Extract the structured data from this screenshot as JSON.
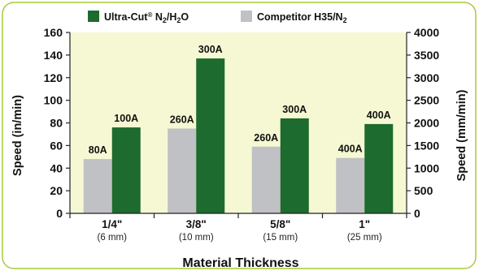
{
  "chart_data": {
    "type": "bar",
    "categories": [
      "1/4\"",
      "3/8\"",
      "5/8\"",
      "1\""
    ],
    "category_sublabels": [
      "(6 mm)",
      "(10 mm)",
      "(15 mm)",
      "(25 mm)"
    ],
    "series": [
      {
        "name_main": "Competitor H35/N",
        "name_sub": "2",
        "values": [
          48,
          75,
          59,
          49
        ],
        "data_labels": [
          "80A",
          "260A",
          "260A",
          "400A"
        ],
        "color": "#c0c1c4"
      },
      {
        "name_main": "Ultra-Cut",
        "name_reg": "®",
        "name_rest": " N",
        "name_sub1": "2",
        "name_slash": "/H",
        "name_sub2": "2",
        "name_end": "O",
        "values": [
          76,
          137,
          84,
          79
        ],
        "data_labels": [
          "100A",
          "300A",
          "300A",
          "400A"
        ],
        "color": "#1d6b2e"
      }
    ],
    "xlabel": "Material Thickness",
    "ylabel": "Speed (in/min)",
    "y2label": "Speed (mm/min)",
    "ylim": [
      0,
      160
    ],
    "yticks": [
      "0",
      "20",
      "40",
      "60",
      "80",
      "100",
      "120",
      "140",
      "160"
    ],
    "y2lim": [
      0,
      4000
    ],
    "y2ticks": [
      "0",
      "500",
      "1000",
      "1500",
      "2000",
      "2500",
      "3000",
      "3500",
      "4000"
    ],
    "grid": false,
    "legend_position": "top"
  },
  "colors": {
    "plot_bg": "#f5f8d2",
    "frame": "#a8c93c"
  }
}
